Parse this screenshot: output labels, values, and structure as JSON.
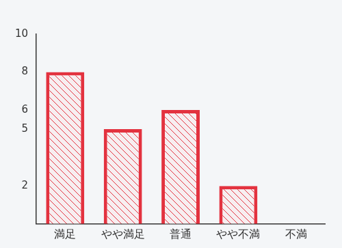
{
  "chart_data": {
    "type": "bar",
    "categories": [
      "満足",
      "やや満足",
      "普通",
      "やや不満",
      "不満"
    ],
    "values": [
      8,
      5,
      6,
      2,
      0
    ],
    "color": "#e3323f",
    "ylim": [
      0,
      10
    ],
    "yticks": [
      2,
      5,
      6,
      8,
      10
    ],
    "grid": false
  }
}
